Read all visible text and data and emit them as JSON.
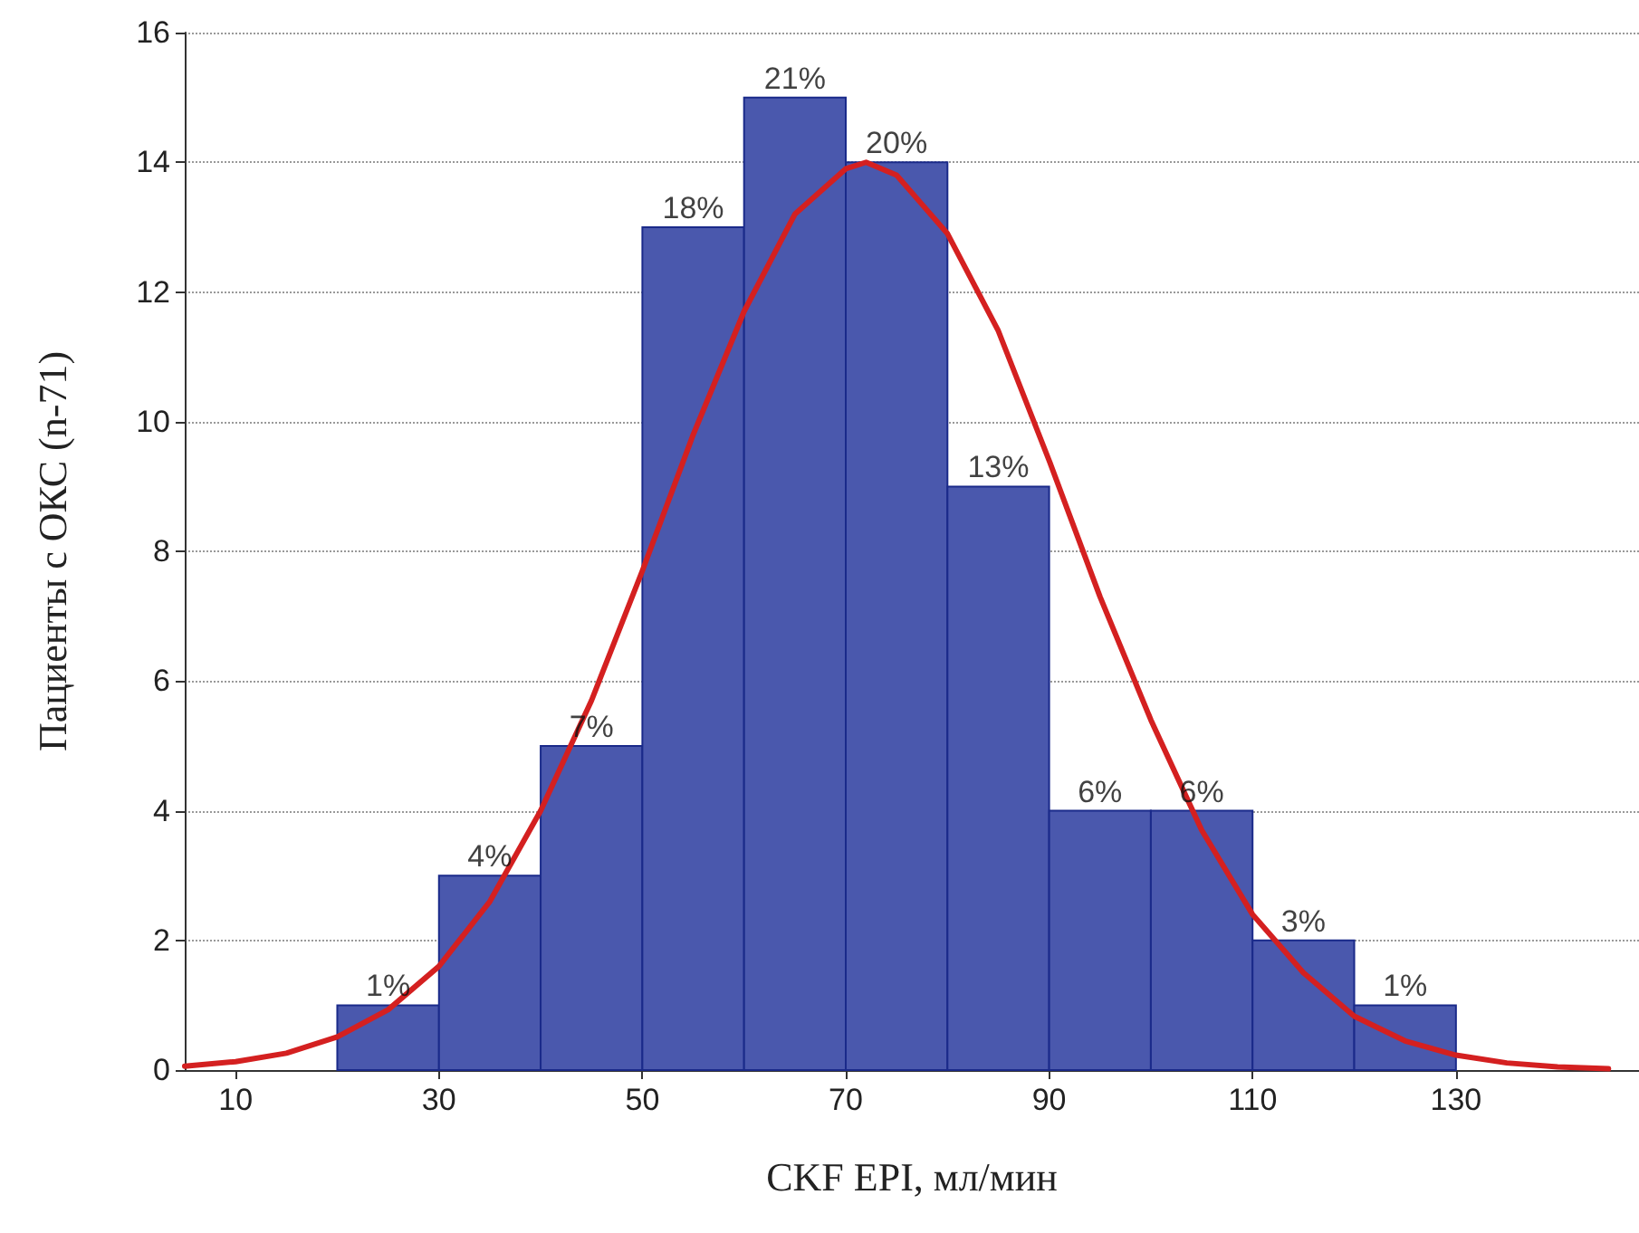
{
  "chart_data": {
    "type": "histogram",
    "xlabel": "CKF EPI, мл/мин",
    "ylabel": "Пациенты с ОКС (n-71)",
    "bins": [
      20,
      30,
      40,
      50,
      60,
      70,
      80,
      90,
      100,
      110,
      120,
      130
    ],
    "values": [
      1,
      3,
      5,
      13,
      15,
      14,
      9,
      4,
      4,
      2,
      1
    ],
    "annotations": [
      {
        "text": "1%",
        "x": 25,
        "y": 1
      },
      {
        "text": "4%",
        "x": 35,
        "y": 3
      },
      {
        "text": "7%",
        "x": 45,
        "y": 5
      },
      {
        "text": "18%",
        "x": 55,
        "y": 13
      },
      {
        "text": "21%",
        "x": 65,
        "y": 15
      },
      {
        "text": "20%",
        "x": 75,
        "y": 14
      },
      {
        "text": "13%",
        "x": 85,
        "y": 9
      },
      {
        "text": "6%",
        "x": 95,
        "y": 4
      },
      {
        "text": "6%",
        "x": 105,
        "y": 4
      },
      {
        "text": "3%",
        "x": 115,
        "y": 2
      },
      {
        "text": "1%",
        "x": 125,
        "y": 1
      }
    ],
    "color": "#4a58ad",
    "series": [
      {
        "type": "line",
        "color": "#d42020",
        "x": [
          5,
          10,
          15,
          20,
          25,
          30,
          35,
          40,
          45,
          50,
          55,
          60,
          65,
          70,
          72,
          75,
          80,
          85,
          90,
          95,
          100,
          105,
          110,
          115,
          120,
          125,
          130,
          135,
          140,
          145
        ],
        "values": [
          0.06,
          0.13,
          0.26,
          0.51,
          0.93,
          1.6,
          2.6,
          4.0,
          5.7,
          7.7,
          9.8,
          11.7,
          13.2,
          13.9,
          14.0,
          13.8,
          12.9,
          11.4,
          9.4,
          7.3,
          5.4,
          3.7,
          2.4,
          1.5,
          0.83,
          0.45,
          0.23,
          0.11,
          0.05,
          0.02
        ]
      }
    ],
    "xlim": [
      5,
      148
    ],
    "xticks": [
      10,
      30,
      50,
      70,
      90,
      110,
      130
    ],
    "ylim": [
      0,
      16
    ],
    "yticks": [
      0,
      2,
      4,
      6,
      8,
      10,
      12,
      14,
      16
    ],
    "grid": "y",
    "marker": "none",
    "line_style": "solid"
  }
}
